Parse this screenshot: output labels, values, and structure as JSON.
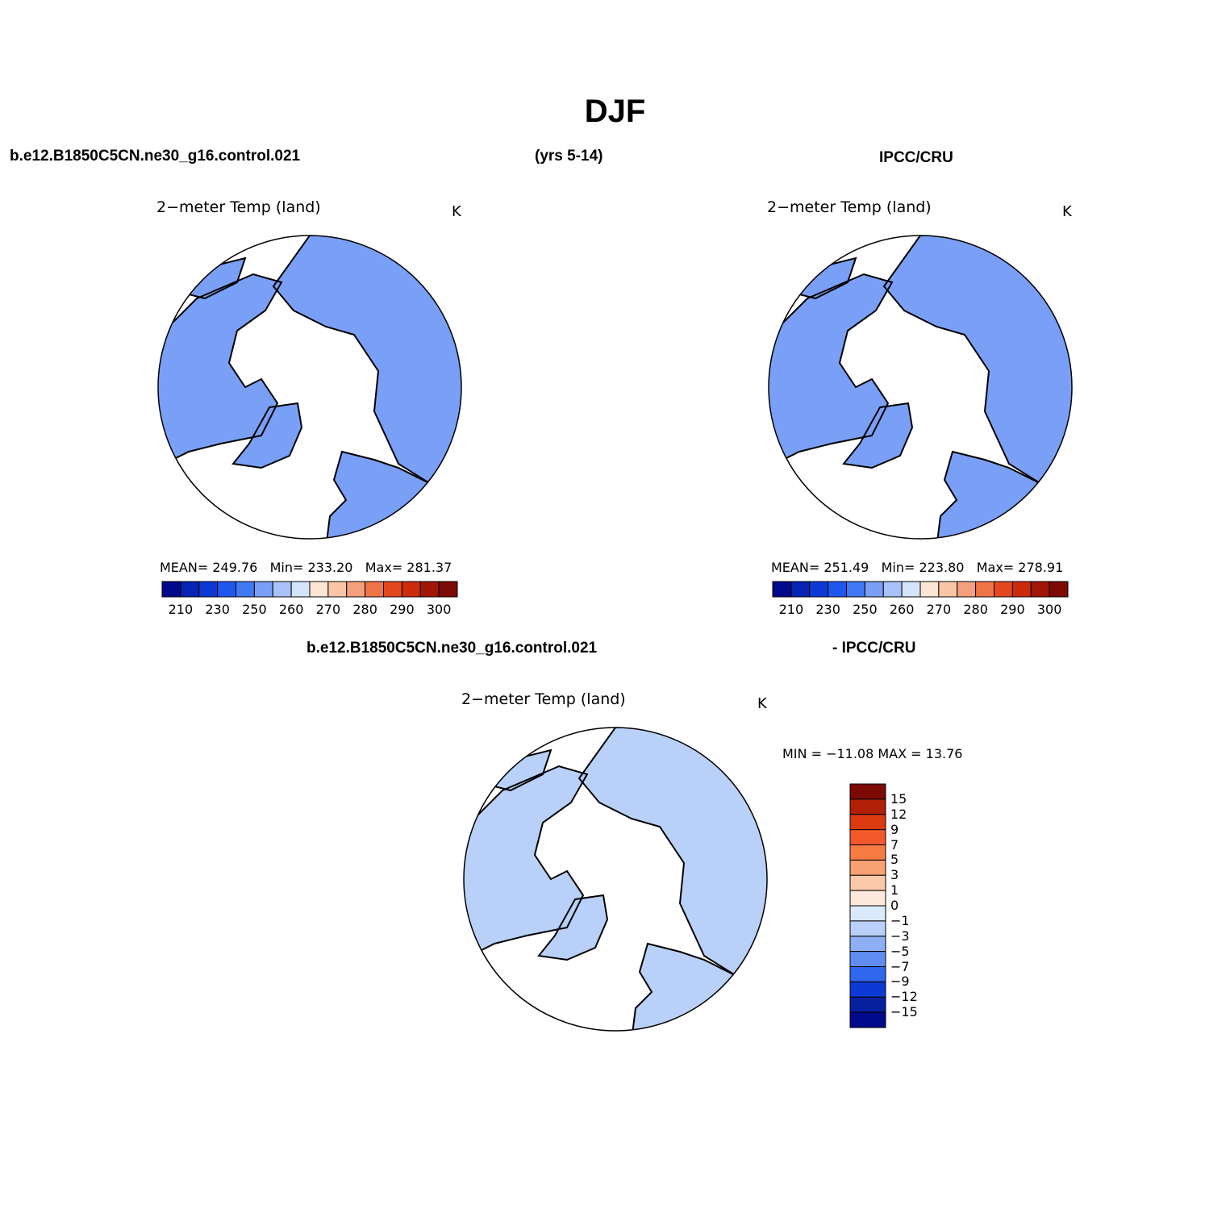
{
  "page": {
    "season": "DJF",
    "case_label": "b.e12.B1850C5CN.ne30_g16.control.021",
    "years": "(yrs 5-14)",
    "obs_label": "IPCC/CRU",
    "diff_case_label": "b.e12.B1850C5CN.ne30_g16.control.021",
    "diff_obs_label": "- IPCC/CRU"
  },
  "panels": [
    {
      "title": "2−meter Temp (land)",
      "units": "K",
      "mean_label": "MEAN=",
      "mean": "249.76",
      "min_label": "Min=",
      "min": "233.20",
      "max_label": "Max=",
      "max": "281.37"
    },
    {
      "title": "2−meter Temp (land)",
      "units": "K",
      "mean_label": "MEAN=",
      "mean": "251.49",
      "min_label": "Min=",
      "min": "223.80",
      "max_label": "Max=",
      "max": "278.91"
    },
    {
      "title": "2−meter Temp (land)",
      "units": "K",
      "minmax_text": "MIN = −11.08 MAX =  13.76"
    }
  ],
  "abs_colorbar": {
    "colors": [
      "#000a8a",
      "#0623b4",
      "#0d3ad6",
      "#1f56ee",
      "#4179f5",
      "#7a9ff6",
      "#a9c2f8",
      "#d3e4fb",
      "#fde5d3",
      "#fbc6a8",
      "#f5a07c",
      "#ef7448",
      "#e4471e",
      "#cc2b0c",
      "#a31506",
      "#7c0a03"
    ],
    "tick_labels": [
      "210",
      "230",
      "250",
      "260",
      "270",
      "280",
      "290",
      "300"
    ]
  },
  "diff_colorbar": {
    "colors": [
      "#7c0a03",
      "#b01f06",
      "#dc3a10",
      "#f2592a",
      "#f77c44",
      "#f9a172",
      "#fbc8a9",
      "#fde8dc",
      "#dae9fb",
      "#b9d0f8",
      "#8eaff4",
      "#5f8df2",
      "#2f67ee",
      "#0d3ad6",
      "#06209e",
      "#000a8a"
    ],
    "tick_labels": [
      "15",
      "12",
      "9",
      "7",
      "5",
      "3",
      "1",
      "0",
      "−1",
      "−3",
      "−5",
      "−7",
      "−9",
      "−12",
      "−15"
    ]
  },
  "map_regions": {
    "model": [
      "#7a9ff6",
      "#4179f5",
      "#d3e4fb",
      "#fbc6a8",
      "#f5a07c",
      "#a9c2f8",
      "#4179f5"
    ],
    "obs": [
      "#7a9ff6",
      "#1f56ee",
      "#d3e4fb",
      "#fbc6a8",
      "#a9c2f8",
      "#0d3ad6",
      "#4179f5"
    ],
    "diff": [
      "#b9d0f8",
      "#8eaff4",
      "#dc3a10",
      "#0d3ad6",
      "#fbc8a9",
      "#2f67ee",
      "#f9a172"
    ]
  }
}
